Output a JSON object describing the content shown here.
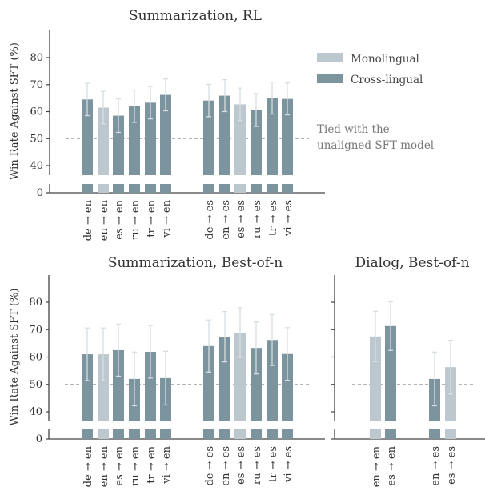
{
  "colors": {
    "monolingual": "#bcc8cd",
    "cross_lingual": "#7b949e",
    "error_bar": "#d6dee1",
    "tie_line": "#9a9a9a",
    "axis": "#444444"
  },
  "legend": {
    "placement": "top-right",
    "items": [
      {
        "label": "Monolingual",
        "kind": "monolingual"
      },
      {
        "label": "Cross-lingual",
        "kind": "cross_lingual"
      }
    ]
  },
  "annotation": {
    "line1": "Tied with the",
    "line2": "unaligned SFT model",
    "value": 50
  },
  "chart_data": [
    {
      "type": "bar",
      "title": "Summarization, RL",
      "ylabel": "Win Rate Against SFT (%)",
      "yticks": [
        0,
        40,
        50,
        60,
        70,
        80
      ],
      "ylim": [
        0,
        90
      ],
      "broken_axis": true,
      "categories": [
        "de → en",
        "en → en",
        "es → en",
        "ru → en",
        "tr → en",
        "vi → en",
        "de → es",
        "en → es",
        "es → es",
        "ru → es",
        "tr → es",
        "vi → es"
      ],
      "kind": [
        "cross_lingual",
        "monolingual",
        "cross_lingual",
        "cross_lingual",
        "cross_lingual",
        "cross_lingual",
        "cross_lingual",
        "cross_lingual",
        "monolingual",
        "cross_lingual",
        "cross_lingual",
        "cross_lingual"
      ],
      "values": [
        64.5,
        61.5,
        58.5,
        62,
        63.3,
        66.2,
        64.1,
        65.9,
        62.7,
        60.6,
        65,
        64.7
      ],
      "errors": [
        6,
        6,
        6.2,
        6,
        6,
        5.9,
        6,
        5.9,
        6,
        6.1,
        5.9,
        5.9
      ]
    },
    {
      "type": "bar",
      "title": "Summarization, Best-of-n",
      "ylabel": "Win Rate Against SFT (%)",
      "yticks": [
        0,
        40,
        50,
        60,
        70,
        80
      ],
      "ylim": [
        0,
        90
      ],
      "broken_axis": true,
      "categories": [
        "de → en",
        "en → en",
        "es → en",
        "ru → en",
        "tr → en",
        "vi → en",
        "de → es",
        "en → es",
        "es → es",
        "ru → es",
        "tr → es",
        "vi → es"
      ],
      "kind": [
        "cross_lingual",
        "monolingual",
        "cross_lingual",
        "cross_lingual",
        "cross_lingual",
        "cross_lingual",
        "cross_lingual",
        "cross_lingual",
        "monolingual",
        "cross_lingual",
        "cross_lingual",
        "cross_lingual"
      ],
      "values": [
        61,
        61,
        62.5,
        52,
        61.9,
        52.3,
        64,
        67.4,
        68.9,
        63.3,
        66.2,
        61.1
      ],
      "errors": [
        9.6,
        9.6,
        9.5,
        9.8,
        9.6,
        9.8,
        9.5,
        9.2,
        9.1,
        9.5,
        9.3,
        9.6
      ]
    },
    {
      "type": "bar",
      "title": "Dialog, Best-of-n",
      "yticks": [
        0,
        40,
        50,
        60,
        70,
        80
      ],
      "ylim": [
        0,
        90
      ],
      "broken_axis": true,
      "categories": [
        "en → en",
        "es → en",
        "en → es",
        "es → es"
      ],
      "kind": [
        "monolingual",
        "cross_lingual",
        "cross_lingual",
        "monolingual"
      ],
      "values": [
        67.5,
        71.3,
        52,
        56.3
      ],
      "errors": [
        9.2,
        8.9,
        9.8,
        9.8
      ]
    }
  ]
}
